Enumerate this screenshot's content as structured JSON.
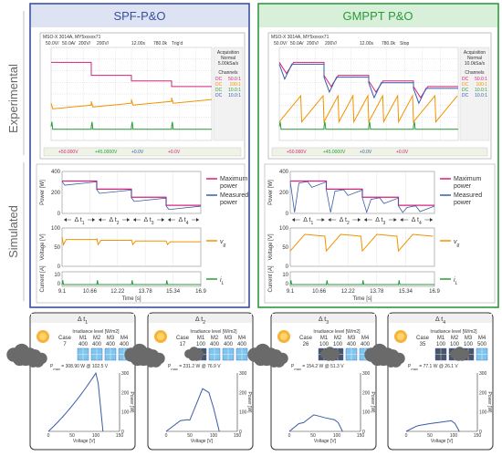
{
  "headers": {
    "left": "SPF-P&O",
    "right": "GMPPT P&O"
  },
  "side_labels": {
    "experimental": "Experimental",
    "simulated": "Simulated"
  },
  "colors": {
    "blue": "#3a4fa0",
    "green": "#2b9a3a",
    "magenta": "#d4237a",
    "orange": "#f39200",
    "pv_blue": "#3a5ba8",
    "header_left_bg": "#dde3f2",
    "header_right_bg": "#d8efd9"
  },
  "scope": {
    "left": {
      "header": "MSO-X 3014A, MY5xxxxx71",
      "settings": [
        "50.0V/",
        "50.0A/",
        "200V/",
        "200V/",
        "12.00s",
        "780.0k",
        "Trig'd"
      ],
      "right_panel": [
        "Acquisition",
        "Normal",
        "5.00kSa/s",
        "Channels"
      ],
      "ch_labels": [
        "DC",
        "DC",
        "DC",
        "DC"
      ],
      "ch_values": [
        "50.0:1",
        "100:1",
        "10.0:1",
        "10.0:1"
      ],
      "footer": [
        "+50.000V",
        "+45.0000V",
        "+0.0V",
        "+0.0V"
      ]
    },
    "right": {
      "header": "MSO-X 3014A, MY5xxxxx71",
      "settings": [
        "50.0V/",
        "50.0A/",
        "200V/",
        "200V/",
        "12.00s",
        "780.0k",
        "Stop"
      ],
      "right_panel": [
        "Acquisition",
        "Normal",
        "10.0kSa/s",
        "Channels"
      ],
      "ch_labels": [
        "DC",
        "DC",
        "DC",
        "DC"
      ],
      "ch_values": [
        "50.0:1",
        "100:1",
        "10.0:1",
        "10.0:1"
      ],
      "footer": [
        "+50.000V",
        "+45.0000V",
        "+0.0V",
        "+0.0V"
      ]
    }
  },
  "sim": {
    "ylabels": {
      "power": "Power [W]",
      "voltage": "Voltage [V]",
      "current": "Current [A]"
    },
    "power_ticks": [
      "400",
      "200",
      "0"
    ],
    "voltage_ticks": [
      "100",
      "50",
      "0"
    ],
    "current_ticks": [
      "10",
      "0"
    ],
    "time_ticks": [
      "9.1",
      "10.66",
      "12.22",
      "13.78",
      "15.34",
      "16.9"
    ],
    "xlabel": "Time [s]",
    "legend_max": [
      "Maximum",
      "power"
    ],
    "legend_meas": [
      "Measured",
      "power"
    ],
    "vg": "v",
    "vg_sub": "g",
    "il": "i",
    "il_sub": "L",
    "delta": "Δ t",
    "delta_subs": [
      "1",
      "2",
      "3",
      "4"
    ]
  },
  "cases": [
    {
      "title": "Δ t",
      "sub": "1",
      "irr_title": "Irradiance level [W/m2]",
      "heads": [
        "Case",
        "M1",
        "M2",
        "M3",
        "M4"
      ],
      "values": [
        "7",
        "400",
        "400",
        "400",
        "400"
      ],
      "pmax": "P",
      "pmax_sub": "max",
      "pmax_text": "= 308.90 W @ 102.5 V",
      "ylabel": "Power [W]",
      "xlabel": "Voltage [V]",
      "yticks": [
        "300",
        "200",
        "100",
        "0"
      ],
      "xticks": [
        "0",
        "50",
        "100",
        "150"
      ]
    },
    {
      "title": "Δ t",
      "sub": "2",
      "irr_title": "Irradiance level [W/m2]",
      "heads": [
        "Case",
        "M1",
        "M2",
        "M3",
        "M4"
      ],
      "values": [
        "17",
        "100",
        "400",
        "400",
        "400"
      ],
      "pmax": "P",
      "pmax_sub": "max",
      "pmax_text": "= 231.2 W @ 76.9 V",
      "ylabel": "Power [W]",
      "xlabel": "Voltage [V]",
      "yticks": [
        "300",
        "200",
        "100",
        "0"
      ],
      "xticks": [
        "0",
        "50",
        "100",
        "150"
      ]
    },
    {
      "title": "Δ t",
      "sub": "3",
      "irr_title": "Irradiance level [W/m2]",
      "heads": [
        "Case",
        "M1",
        "M2",
        "M3",
        "M4"
      ],
      "values": [
        "26",
        "100",
        "100",
        "400",
        "400"
      ],
      "pmax": "P",
      "pmax_sub": "max",
      "pmax_text": "= 154.2 W @ 51.3 V",
      "ylabel": "Power [W]",
      "xlabel": "Voltage [V]",
      "yticks": [
        "300",
        "200",
        "100",
        "0"
      ],
      "xticks": [
        "0",
        "50",
        "100",
        "150"
      ]
    },
    {
      "title": "Δ t",
      "sub": "4",
      "irr_title": "Irradiance level [W/m2]",
      "heads": [
        "Case",
        "M1",
        "M2",
        "M3",
        "M4"
      ],
      "values": [
        "35",
        "100",
        "100",
        "100",
        "500"
      ],
      "pmax": "P",
      "pmax_sub": "max",
      "pmax_text": "= 77.1 W @ 26.1 V",
      "ylabel": "Power [W]",
      "xlabel": "Voltage [V]",
      "yticks": [
        "300",
        "200",
        "100",
        "0"
      ],
      "xticks": [
        "0",
        "50",
        "100",
        "150"
      ]
    }
  ]
}
